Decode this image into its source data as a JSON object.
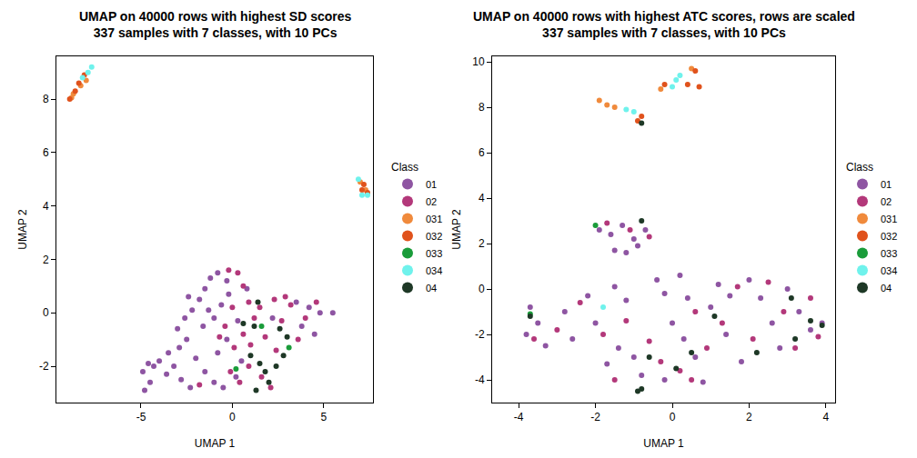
{
  "chart_data": [
    {
      "type": "scatter",
      "title": "UMAP on 40000 rows with highest SD scores\n337 samples with 7 classes, with 10 PCs",
      "xlabel": "UMAP 1",
      "ylabel": "UMAP 2",
      "legend_title": "Class",
      "legend": "right",
      "grid": false,
      "xlim": [
        -9.63,
        7.7
      ],
      "ylim": [
        -3.36,
        9.6
      ],
      "xticks": [
        -5,
        0,
        5
      ],
      "yticks": [
        -2,
        0,
        2,
        4,
        6,
        8
      ],
      "series": [
        {
          "name": "01",
          "color": "#8E55A2",
          "x": [
            -4.8,
            -4.5,
            -4.9,
            -4.3,
            -4.0,
            -3.6,
            -3.2,
            -3.5,
            -2.9,
            -2.5,
            -3.0,
            -2.6,
            -2.2,
            -1.8,
            -1.5,
            -1.2,
            -0.8,
            -0.3,
            -1.6,
            -1.0,
            -0.6,
            -0.2,
            -2.0,
            -1.5,
            -1.0,
            -0.5,
            0.2,
            -0.8,
            -0.3,
            0.3,
            0.8,
            -2.8,
            -2.3,
            3.5,
            4.2,
            4.8,
            5.5,
            4.5,
            3.8,
            2.2,
            -1.3,
            -2.4,
            0.5,
            -4.6
          ],
          "y": [
            -2.9,
            -2.6,
            -2.2,
            -2.0,
            -1.8,
            -2.3,
            -2.0,
            -1.5,
            -1.3,
            -1.0,
            -0.6,
            -0.2,
            0.1,
            0.5,
            0.9,
            1.3,
            1.5,
            1.2,
            -0.5,
            -0.2,
            0.3,
            0.7,
            -1.7,
            -2.2,
            -2.6,
            -2.8,
            -2.4,
            -1.5,
            -1.0,
            -0.3,
            0.9,
            -2.5,
            -2.8,
            0.4,
            0.2,
            0.0,
            0.0,
            -0.8,
            -0.5,
            -0.2,
            0.1,
            0.6,
            -1.8,
            -1.9
          ]
        },
        {
          "name": "02",
          "color": "#B3387A",
          "x": [
            -0.2,
            0.3,
            0.6,
            0.9,
            1.2,
            0.6,
            0.1,
            -0.4,
            1.5,
            1.8,
            2.4,
            2.9,
            3.2,
            2.7,
            3.6,
            4.0,
            0.4,
            0.9,
            -0.1,
            1.6,
            2.1,
            1.0,
            -1.8,
            -0.7,
            0.0,
            2.3,
            4.6
          ],
          "y": [
            1.6,
            1.5,
            1.0,
            0.4,
            -0.2,
            -0.8,
            -1.3,
            -0.5,
            0.2,
            -0.9,
            -1.4,
            0.6,
            0.3,
            -0.3,
            -1.0,
            -0.2,
            -2.6,
            -2.0,
            -2.2,
            -2.4,
            -2.8,
            -1.2,
            -2.7,
            -0.9,
            0.2,
            0.5,
            0.4
          ]
        },
        {
          "name": "031",
          "color": "#F08A3C",
          "x": [
            -8.8,
            -8.7,
            -8.3,
            -8.0,
            7.0,
            7.3
          ],
          "y": [
            8.05,
            8.2,
            8.5,
            8.7,
            4.9,
            4.6
          ]
        },
        {
          "name": "032",
          "color": "#E0521C",
          "x": [
            -8.9,
            -8.6,
            -8.4,
            -8.1,
            7.2,
            7.4,
            7.1
          ],
          "y": [
            8.0,
            8.3,
            8.6,
            8.9,
            4.8,
            4.5,
            4.6
          ]
        },
        {
          "name": "033",
          "color": "#1A9C3A",
          "x": [
            1.6,
            3.1,
            0.2
          ],
          "y": [
            -0.5,
            -1.3,
            -2.1
          ]
        },
        {
          "name": "034",
          "color": "#6FF2EC",
          "x": [
            -7.9,
            -7.7,
            -8.2,
            6.9,
            7.1,
            7.4
          ],
          "y": [
            9.0,
            9.2,
            8.8,
            5.0,
            4.4,
            4.4
          ]
        },
        {
          "name": "04",
          "color": "#1E3826",
          "x": [
            1.4,
            1.2,
            0.6,
            1.0,
            1.5,
            1.8,
            2.0,
            1.3,
            2.6,
            3.0,
            2.4,
            2.8
          ],
          "y": [
            0.4,
            -0.5,
            -0.4,
            -1.6,
            -1.9,
            -2.2,
            -2.6,
            -2.9,
            -0.6,
            -0.9,
            -2.0,
            -1.6
          ]
        }
      ]
    },
    {
      "type": "scatter",
      "title": "UMAP on 40000 rows with highest ATC scores, rows are scaled\n337 samples with 7 classes, with 10 PCs",
      "xlabel": "UMAP 1",
      "ylabel": "UMAP 2",
      "legend_title": "Class",
      "legend": "right",
      "grid": false,
      "xlim": [
        -4.69,
        4.24
      ],
      "ylim": [
        -5.0,
        10.24
      ],
      "xticks": [
        -4,
        -2,
        0,
        2,
        4
      ],
      "yticks": [
        -4,
        -2,
        0,
        2,
        4,
        6,
        8,
        10
      ],
      "series": [
        {
          "name": "01",
          "color": "#8E55A2",
          "x": [
            -1.9,
            -1.6,
            -1.3,
            -1.0,
            -0.7,
            -1.5,
            -1.2,
            -0.9,
            -3.7,
            -3.5,
            -3.8,
            -3.3,
            -2.6,
            -2.2,
            -2.0,
            -1.5,
            -1.2,
            -1.4,
            -1.0,
            -0.8,
            -0.4,
            -0.2,
            0.2,
            0.4,
            0.0,
            0.3,
            0.6,
            1.0,
            1.2,
            1.4,
            1.8,
            2.0,
            2.3,
            2.6,
            2.8,
            3.0,
            3.3,
            3.6,
            3.9,
            -0.2,
            0.8,
            1.5,
            -2.8,
            -1.7
          ],
          "y": [
            2.6,
            2.4,
            2.8,
            2.2,
            2.6,
            1.7,
            1.6,
            1.9,
            -0.8,
            -1.5,
            -2.0,
            -2.5,
            -2.2,
            -0.3,
            -1.5,
            0.1,
            -0.5,
            -2.6,
            -3.0,
            -3.8,
            0.4,
            -0.2,
            0.6,
            -0.4,
            -1.5,
            -2.2,
            -3.0,
            -0.8,
            0.2,
            -2.0,
            -3.2,
            0.4,
            -0.4,
            -1.5,
            -2.6,
            0.0,
            -1.0,
            -1.8,
            -1.5,
            -4.0,
            -4.1,
            -0.3,
            -1.0,
            -3.3
          ]
        },
        {
          "name": "02",
          "color": "#B3387A",
          "x": [
            -1.7,
            -1.1,
            -0.6,
            -3.6,
            -3.0,
            -2.4,
            -1.8,
            -1.2,
            -0.6,
            -0.3,
            0.2,
            0.6,
            0.9,
            1.3,
            1.7,
            2.1,
            2.5,
            2.9,
            3.2,
            3.6,
            3.8,
            0.5,
            -1.5
          ],
          "y": [
            2.9,
            2.6,
            2.3,
            -2.2,
            -1.8,
            -0.6,
            -2.0,
            -1.4,
            -2.3,
            -3.2,
            -3.6,
            -1.0,
            -2.6,
            -1.5,
            0.1,
            -2.2,
            0.3,
            -1.0,
            -2.6,
            -0.4,
            -2.1,
            -4.0,
            -4.0
          ]
        },
        {
          "name": "031",
          "color": "#F08A3C",
          "x": [
            -1.9,
            -1.7,
            -1.5,
            0.5,
            -0.3
          ],
          "y": [
            8.3,
            8.1,
            8.0,
            9.7,
            8.8
          ]
        },
        {
          "name": "032",
          "color": "#E0521C",
          "x": [
            -0.8,
            -0.9,
            0.6,
            0.4,
            0.7,
            -0.2
          ],
          "y": [
            7.6,
            7.4,
            9.6,
            9.0,
            8.9,
            9.0
          ]
        },
        {
          "name": "033",
          "color": "#1A9C3A",
          "x": [
            -2.0,
            -3.7
          ],
          "y": [
            2.8,
            -1.1
          ]
        },
        {
          "name": "034",
          "color": "#6FF2EC",
          "x": [
            -1.2,
            -1.0,
            0.1,
            0.2,
            0.0,
            -1.8
          ],
          "y": [
            7.9,
            7.8,
            9.2,
            9.4,
            8.9,
            -0.8
          ]
        },
        {
          "name": "04",
          "color": "#1E3826",
          "x": [
            -0.8,
            -0.8,
            -3.7,
            -0.8,
            -0.9,
            0.1,
            0.5,
            1.1,
            2.2,
            3.1,
            3.2,
            3.6,
            3.9,
            -0.6
          ],
          "y": [
            7.3,
            3.0,
            -1.2,
            -4.4,
            -4.5,
            -3.5,
            -2.8,
            -1.2,
            -2.8,
            -0.4,
            -2.2,
            -1.4,
            -1.6,
            -3.0
          ]
        }
      ]
    }
  ]
}
